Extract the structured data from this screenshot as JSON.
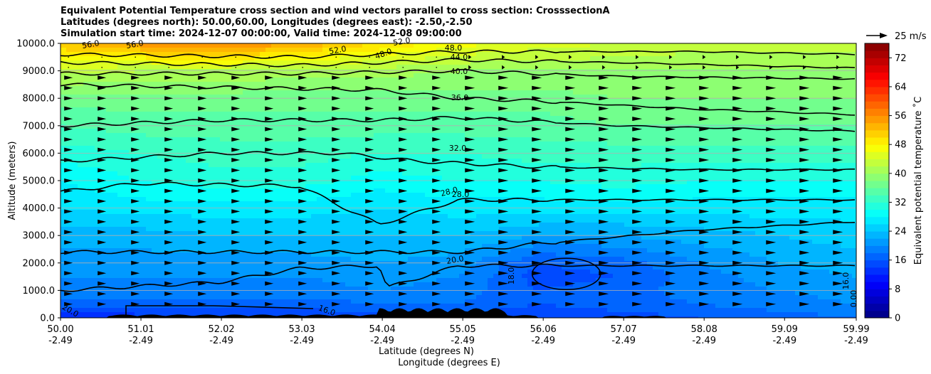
{
  "chart_data": {
    "type": "heatmap",
    "title_lines": [
      "Equivalent Potential Temperature cross section and wind vectors parallel to cross section: CrosssectionA",
      "Latitudes (degrees north): 50.00,60.00, Longitudes (degrees east): -2.50,-2.50",
      "Simulation start time: 2024-12-07 00:00:00, Valid time: 2024-12-08 09:00:00"
    ],
    "ylabel": "Altitude (meters)",
    "xlabel_lat": "Latitude (degrees N)",
    "xlabel_lon": "Longitude (degrees E)",
    "ylim": [
      0,
      10000
    ],
    "y_ticks": [
      "0.0",
      "1000.0",
      "2000.0",
      "3000.0",
      "4000.0",
      "5000.0",
      "6000.0",
      "7000.0",
      "8000.0",
      "9000.0",
      "10000.0"
    ],
    "x_ticks_lat": [
      "50.00",
      "51.01",
      "52.02",
      "53.03",
      "54.04",
      "55.05",
      "56.06",
      "57.07",
      "58.08",
      "59.09",
      "59.99"
    ],
    "x_ticks_lon": [
      "-2.49",
      "-2.49",
      "-2.49",
      "-2.49",
      "-2.49",
      "-2.49",
      "-2.49",
      "-2.49",
      "-2.49",
      "-2.49",
      "-2.49"
    ],
    "colorbar": {
      "label": "Equivalent potential temperature ˚C",
      "range": [
        0,
        76
      ],
      "ticks": [
        "0",
        "8",
        "16",
        "24",
        "32",
        "40",
        "48",
        "56",
        "64",
        "72"
      ]
    },
    "quiver_key": "25 m/s",
    "contour_labels": [
      "56.0",
      "56.0",
      "52.0",
      "48.0",
      "52.0",
      "48.0",
      "44.0",
      "40.0",
      "36.0",
      "32.0",
      "28.0",
      "28.0",
      "20.0",
      "18.0",
      "16.0",
      "16.0",
      "20.0",
      "0.00"
    ],
    "temperature_field": {
      "x_lat": [
        50.0,
        51.0,
        52.0,
        53.0,
        54.0,
        55.0,
        56.0,
        57.0,
        58.0,
        59.0,
        60.0
      ],
      "altitude_m": [
        0,
        500,
        1000,
        1500,
        2000,
        3000,
        4000,
        5000,
        6000,
        7000,
        8000,
        9000,
        10000
      ],
      "values": [
        [
          12,
          13,
          13,
          14,
          15,
          15,
          14,
          15,
          16,
          17,
          18
        ],
        [
          17,
          17,
          17,
          17,
          18,
          18,
          16,
          17,
          18,
          19,
          20
        ],
        [
          19,
          19,
          19,
          19,
          20,
          19,
          16,
          17,
          19,
          20,
          21
        ],
        [
          20,
          20,
          20,
          20,
          21,
          20,
          15,
          16,
          19,
          21,
          22
        ],
        [
          21,
          21,
          21,
          21,
          22,
          21,
          16,
          17,
          20,
          22,
          23
        ],
        [
          23,
          23,
          24,
          24,
          24,
          24,
          22,
          22,
          23,
          24,
          25
        ],
        [
          26,
          27,
          27,
          27,
          26,
          27,
          27,
          27,
          27,
          27,
          27
        ],
        [
          28,
          30,
          31,
          31,
          29,
          30,
          30,
          31,
          30,
          30,
          30
        ],
        [
          31,
          32,
          33,
          33,
          32,
          32,
          33,
          33,
          33,
          33,
          33
        ],
        [
          34,
          35,
          35,
          35,
          35,
          35,
          35,
          36,
          36,
          36,
          36
        ],
        [
          37,
          37,
          37,
          37,
          37,
          37,
          37,
          38,
          38,
          38,
          38
        ],
        [
          43,
          42,
          42,
          41,
          41,
          40,
          40,
          40,
          40,
          40,
          40
        ],
        [
          52,
          55,
          57,
          54,
          50,
          47,
          45,
          44,
          43,
          43,
          43
        ]
      ]
    }
  }
}
